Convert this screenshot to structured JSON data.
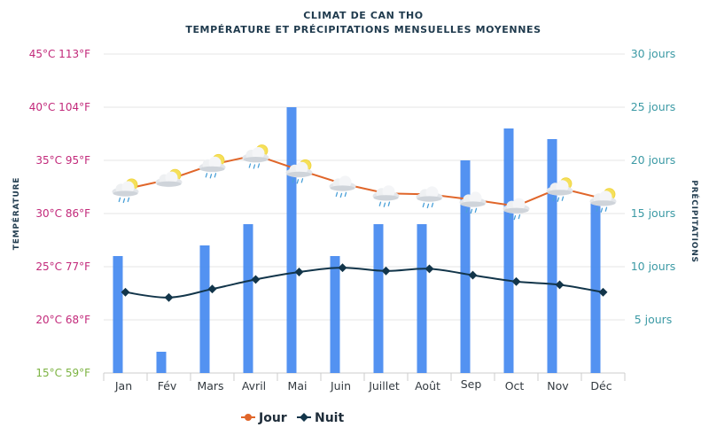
{
  "chart_data": {
    "type": "bar+line",
    "title": "CLIMAT DE CAN THO",
    "subtitle": "TEMPÉRATURE ET PRÉCIPITATIONS MENSUELLES MOYENNES",
    "categories": [
      "Jan",
      "Fév",
      "Mars",
      "Avril",
      "Mai",
      "Juin",
      "Juillet",
      "Août",
      "Sep",
      "Oct",
      "Nov",
      "Déc"
    ],
    "y_left": {
      "label": "TEMPÉRATURE",
      "range": [
        15,
        45
      ],
      "ticks": [
        {
          "value": 45,
          "label": "45°C 113°F"
        },
        {
          "value": 40,
          "label": "40°C 104°F"
        },
        {
          "value": 35,
          "label": "35°C 95°F"
        },
        {
          "value": 30,
          "label": "30°C 86°F"
        },
        {
          "value": 25,
          "label": "25°C 77°F"
        },
        {
          "value": 20,
          "label": "20°C 68°F"
        },
        {
          "value": 15,
          "label": "15°C 59°F"
        }
      ]
    },
    "y_right": {
      "label": "PRÉCIPITATIONS",
      "range": [
        0,
        30
      ],
      "ticks": [
        {
          "value": 30,
          "label": "30 jours"
        },
        {
          "value": 25,
          "label": "25 jours"
        },
        {
          "value": 20,
          "label": "20 jours"
        },
        {
          "value": 15,
          "label": "15 jours"
        },
        {
          "value": 10,
          "label": "10 jours"
        },
        {
          "value": 5,
          "label": "5 jours"
        }
      ]
    },
    "grid": true,
    "legend_position": "bottom-center",
    "series": [
      {
        "name": "Précipitations",
        "type": "bar",
        "axis": "right",
        "color": "#4a8cf0",
        "values": [
          11,
          2,
          12,
          14,
          25,
          11,
          14,
          14,
          20,
          23,
          22,
          16
        ]
      },
      {
        "name": "Jour",
        "type": "line",
        "axis": "left",
        "color": "#e0662a",
        "values": [
          32.3,
          33.2,
          34.6,
          35.5,
          34.1,
          32.8,
          31.9,
          31.8,
          31.3,
          30.7,
          32.4,
          31.4
        ]
      },
      {
        "name": "Nuit",
        "type": "line",
        "axis": "left",
        "color": "#12354a",
        "values": [
          22.6,
          22.1,
          22.9,
          23.8,
          24.5,
          24.9,
          24.6,
          24.8,
          24.2,
          23.6,
          23.3,
          22.6
        ]
      }
    ],
    "weather_icons": [
      "partly-cloudy-rain-icon",
      "partly-cloudy-icon",
      "partly-cloudy-rain-icon",
      "partly-cloudy-rain-icon",
      "partly-cloudy-rain-icon",
      "rain-cloud-icon",
      "rain-cloud-icon",
      "rain-cloud-icon",
      "rain-cloud-icon",
      "rain-cloud-icon",
      "partly-cloudy-rain-icon",
      "partly-cloudy-rain-icon"
    ],
    "legend": [
      {
        "name": "Jour",
        "color": "#e0662a"
      },
      {
        "name": "Nuit",
        "color": "#12354a"
      }
    ],
    "colors": {
      "left_axis": "#c2297a",
      "left_axis_min": "#7cb342",
      "right_axis": "#3c9aa5",
      "grid": "#e6e6e6"
    }
  }
}
